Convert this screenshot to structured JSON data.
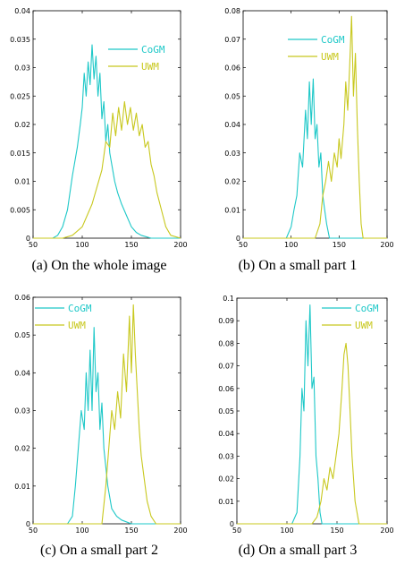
{
  "colors": {
    "CoGM": "#1ec8c8",
    "UWM": "#c8c81e",
    "axis": "#000000"
  },
  "chart_data": [
    {
      "type": "line",
      "caption": "(a) On the whole image",
      "xlim": [
        50,
        200
      ],
      "ylim": [
        0,
        0.04
      ],
      "xticks": [
        50,
        100,
        150,
        200
      ],
      "yticks": [
        0,
        0.005,
        0.01,
        0.015,
        0.02,
        0.025,
        0.03,
        0.035,
        0.04
      ],
      "xtick_labels": [
        "50",
        "100",
        "150",
        "200"
      ],
      "ytick_labels": [
        "0",
        "0.005",
        "0.01",
        "0.015",
        "0.02",
        "0.025",
        "0.03",
        "0.035",
        "0.04"
      ],
      "legend": "top-right",
      "series": [
        {
          "name": "CoGM",
          "x": [
            50,
            60,
            70,
            75,
            80,
            85,
            90,
            95,
            98,
            100,
            102,
            104,
            106,
            108,
            110,
            112,
            114,
            116,
            118,
            120,
            122,
            124,
            126,
            128,
            130,
            133,
            136,
            140,
            145,
            150,
            155,
            160,
            170,
            200
          ],
          "y": [
            0,
            0,
            0,
            0.0005,
            0.002,
            0.005,
            0.011,
            0.016,
            0.02,
            0.023,
            0.029,
            0.025,
            0.031,
            0.027,
            0.034,
            0.028,
            0.032,
            0.025,
            0.029,
            0.021,
            0.024,
            0.017,
            0.02,
            0.015,
            0.013,
            0.01,
            0.008,
            0.006,
            0.004,
            0.002,
            0.001,
            0.0005,
            0,
            0
          ]
        },
        {
          "name": "UWM",
          "x": [
            50,
            80,
            90,
            100,
            105,
            110,
            115,
            120,
            124,
            128,
            131,
            134,
            137,
            140,
            143,
            146,
            149,
            152,
            155,
            158,
            161,
            164,
            167,
            170,
            173,
            176,
            179,
            182,
            185,
            190,
            200
          ],
          "y": [
            0,
            0,
            0.0005,
            0.002,
            0.004,
            0.006,
            0.009,
            0.012,
            0.017,
            0.016,
            0.022,
            0.018,
            0.023,
            0.019,
            0.024,
            0.02,
            0.023,
            0.019,
            0.022,
            0.018,
            0.02,
            0.016,
            0.017,
            0.013,
            0.011,
            0.008,
            0.006,
            0.004,
            0.002,
            0.0005,
            0
          ]
        }
      ]
    },
    {
      "type": "line",
      "caption": "(b) On a small part 1",
      "xlim": [
        50,
        200
      ],
      "ylim": [
        0,
        0.08
      ],
      "xticks": [
        50,
        100,
        150,
        200
      ],
      "yticks": [
        0,
        0.01,
        0.02,
        0.03,
        0.04,
        0.05,
        0.06,
        0.07,
        0.08
      ],
      "xtick_labels": [
        "50",
        "100",
        "150",
        "200"
      ],
      "ytick_labels": [
        "0",
        "0.01",
        "0.02",
        "0.03",
        "0.04",
        "0.05",
        "0.06",
        "0.07",
        "0.08"
      ],
      "legend": "top-right",
      "series": [
        {
          "name": "CoGM",
          "x": [
            50,
            95,
            100,
            103,
            106,
            109,
            112,
            115,
            117,
            119,
            121,
            123,
            125,
            127,
            129,
            131,
            133,
            135,
            137,
            140,
            200
          ],
          "y": [
            0,
            0,
            0.004,
            0.01,
            0.015,
            0.03,
            0.025,
            0.045,
            0.035,
            0.055,
            0.04,
            0.056,
            0.035,
            0.04,
            0.025,
            0.03,
            0.015,
            0.01,
            0.005,
            0,
            0
          ]
        },
        {
          "name": "UWM",
          "x": [
            50,
            125,
            130,
            133,
            136,
            139,
            142,
            145,
            148,
            150,
            152,
            155,
            157,
            159,
            161,
            163,
            165,
            167,
            169,
            171,
            173,
            175,
            200
          ],
          "y": [
            0,
            0,
            0.005,
            0.015,
            0.02,
            0.027,
            0.02,
            0.03,
            0.025,
            0.035,
            0.028,
            0.04,
            0.055,
            0.045,
            0.06,
            0.078,
            0.05,
            0.065,
            0.04,
            0.02,
            0.005,
            0,
            0
          ]
        }
      ]
    },
    {
      "type": "line",
      "caption": "(c) On a small part 2",
      "xlim": [
        50,
        200
      ],
      "ylim": [
        0,
        0.06
      ],
      "xticks": [
        50,
        100,
        150,
        200
      ],
      "yticks": [
        0,
        0.01,
        0.02,
        0.03,
        0.04,
        0.05,
        0.06
      ],
      "xtick_labels": [
        "50",
        "100",
        "150",
        "200"
      ],
      "ytick_labels": [
        "0",
        "0.01",
        "0.02",
        "0.03",
        "0.04",
        "0.05",
        "0.06"
      ],
      "legend": "top-left",
      "series": [
        {
          "name": "CoGM",
          "x": [
            50,
            85,
            90,
            93,
            96,
            99,
            102,
            104,
            106,
            108,
            110,
            112,
            114,
            116,
            118,
            120,
            122,
            124,
            126,
            130,
            135,
            140,
            150,
            200
          ],
          "y": [
            0,
            0,
            0.002,
            0.01,
            0.02,
            0.03,
            0.025,
            0.04,
            0.03,
            0.046,
            0.03,
            0.052,
            0.035,
            0.04,
            0.025,
            0.032,
            0.02,
            0.015,
            0.01,
            0.004,
            0.002,
            0.001,
            0,
            0
          ]
        },
        {
          "name": "UWM",
          "x": [
            50,
            120,
            124,
            127,
            130,
            133,
            136,
            139,
            142,
            145,
            148,
            150,
            152,
            154,
            156,
            158,
            160,
            163,
            166,
            170,
            175,
            200
          ],
          "y": [
            0,
            0,
            0.01,
            0.02,
            0.03,
            0.025,
            0.035,
            0.028,
            0.045,
            0.035,
            0.055,
            0.04,
            0.058,
            0.045,
            0.035,
            0.025,
            0.018,
            0.012,
            0.006,
            0.002,
            0,
            0
          ]
        }
      ]
    },
    {
      "type": "line",
      "caption": "(d) On a small part 3",
      "xlim": [
        50,
        200
      ],
      "ylim": [
        0,
        0.1
      ],
      "xticks": [
        50,
        100,
        150,
        200
      ],
      "yticks": [
        0,
        0.01,
        0.02,
        0.03,
        0.04,
        0.05,
        0.06,
        0.07,
        0.08,
        0.09,
        0.1
      ],
      "xtick_labels": [
        "50",
        "100",
        "150",
        "200"
      ],
      "ytick_labels": [
        "0",
        "0.01",
        "0.02",
        "0.03",
        "0.04",
        "0.05",
        "0.06",
        "0.07",
        "0.08",
        "0.09",
        "0.1"
      ],
      "legend": "top-right",
      "series": [
        {
          "name": "CoGM",
          "x": [
            50,
            105,
            110,
            113,
            115,
            117,
            119,
            121,
            123,
            125,
            127,
            129,
            131,
            133,
            135,
            200
          ],
          "y": [
            0,
            0,
            0.005,
            0.03,
            0.06,
            0.05,
            0.09,
            0.07,
            0.097,
            0.06,
            0.065,
            0.03,
            0.02,
            0.005,
            0,
            0
          ]
        },
        {
          "name": "UWM",
          "x": [
            50,
            125,
            130,
            134,
            137,
            140,
            143,
            146,
            149,
            152,
            155,
            157,
            159,
            161,
            163,
            165,
            168,
            172,
            200
          ],
          "y": [
            0,
            0,
            0.003,
            0.01,
            0.02,
            0.015,
            0.025,
            0.02,
            0.03,
            0.04,
            0.06,
            0.075,
            0.08,
            0.07,
            0.05,
            0.03,
            0.01,
            0,
            0
          ]
        }
      ]
    }
  ]
}
